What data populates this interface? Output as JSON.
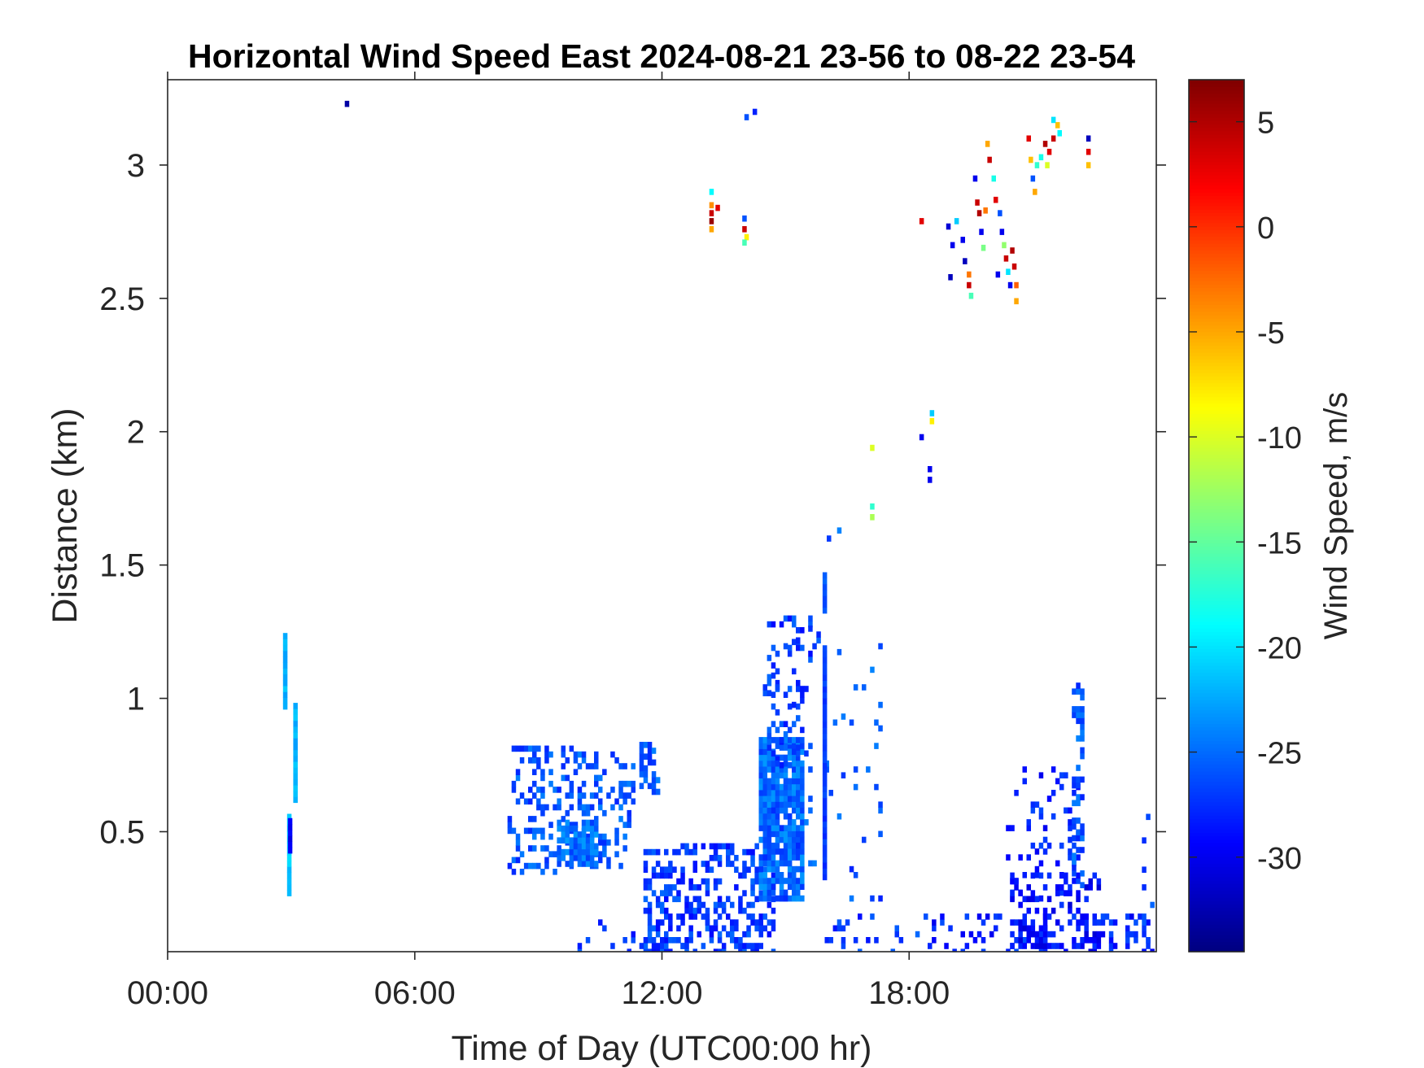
{
  "chart_data": {
    "type": "heatmap",
    "title": "Horizontal Wind Speed East 2024-08-21 23-56 to 08-22 23-54",
    "xlabel": "Time of Day (UTC00:00 hr)",
    "ylabel": "Distance (km)",
    "xlim": [
      0,
      24
    ],
    "ylim": [
      0.05,
      3.32
    ],
    "x_ticks": [
      {
        "value": 0,
        "label": "00:00"
      },
      {
        "value": 6,
        "label": "06:00"
      },
      {
        "value": 12,
        "label": "12:00"
      },
      {
        "value": 18,
        "label": "18:00"
      }
    ],
    "y_ticks": [
      {
        "value": 0.5,
        "label": "0.5"
      },
      {
        "value": 1,
        "label": "1"
      },
      {
        "value": 1.5,
        "label": "1.5"
      },
      {
        "value": 2,
        "label": "2"
      },
      {
        "value": 2.5,
        "label": "2.5"
      },
      {
        "value": 3,
        "label": "3"
      }
    ],
    "grid": false,
    "colorbar": {
      "label": "Wind Speed, m/s",
      "colormap": "jet",
      "range": [
        -34.5,
        7
      ],
      "ticks": [
        {
          "value": 5,
          "label": "5"
        },
        {
          "value": 0,
          "label": "0"
        },
        {
          "value": -5,
          "label": "-5"
        },
        {
          "value": -10,
          "label": "-10"
        },
        {
          "value": -15,
          "label": "-15"
        },
        {
          "value": -20,
          "label": "-20"
        },
        {
          "value": -25,
          "label": "-25"
        },
        {
          "value": -30,
          "label": "-30"
        }
      ]
    },
    "points": [
      [
        4.35,
        3.23,
        -33
      ],
      [
        14.05,
        3.18,
        -26
      ],
      [
        14.25,
        3.2,
        -28
      ],
      [
        13.2,
        2.9,
        -19
      ],
      [
        13.2,
        2.85,
        -4
      ],
      [
        13.2,
        2.82,
        4
      ],
      [
        13.2,
        2.79,
        6
      ],
      [
        13.2,
        2.76,
        -5
      ],
      [
        13.35,
        2.84,
        3
      ],
      [
        14.0,
        2.8,
        -26
      ],
      [
        14.0,
        2.76,
        4
      ],
      [
        14.05,
        2.73,
        -8
      ],
      [
        14.0,
        2.71,
        -16
      ],
      [
        18.3,
        2.79,
        3
      ],
      [
        18.95,
        2.77,
        -31
      ],
      [
        19.05,
        2.7,
        -30
      ],
      [
        19.15,
        2.79,
        -21
      ],
      [
        19.3,
        2.72,
        -30
      ],
      [
        19.35,
        2.64,
        -32
      ],
      [
        19.0,
        2.58,
        -32
      ],
      [
        19.45,
        2.59,
        -3
      ],
      [
        19.45,
        2.55,
        4
      ],
      [
        19.5,
        2.51,
        -16
      ],
      [
        19.6,
        2.95,
        -30
      ],
      [
        19.65,
        2.86,
        4
      ],
      [
        19.7,
        2.82,
        5
      ],
      [
        19.75,
        2.75,
        -30
      ],
      [
        19.8,
        2.69,
        -14
      ],
      [
        19.85,
        2.83,
        -3
      ],
      [
        19.9,
        3.08,
        -5
      ],
      [
        19.95,
        3.02,
        4
      ],
      [
        20.05,
        2.95,
        -18
      ],
      [
        20.1,
        2.87,
        3
      ],
      [
        20.2,
        2.82,
        -26
      ],
      [
        20.25,
        2.75,
        -30
      ],
      [
        20.3,
        2.7,
        -13
      ],
      [
        20.35,
        2.65,
        4
      ],
      [
        20.4,
        2.6,
        -20
      ],
      [
        20.45,
        2.55,
        -30
      ],
      [
        20.5,
        2.68,
        5
      ],
      [
        20.55,
        2.62,
        4
      ],
      [
        20.6,
        2.55,
        -2
      ],
      [
        20.6,
        2.49,
        -5
      ],
      [
        20.15,
        2.59,
        -30
      ],
      [
        20.9,
        3.1,
        3
      ],
      [
        20.95,
        3.02,
        -6
      ],
      [
        21.0,
        2.95,
        -26
      ],
      [
        21.05,
        2.9,
        -5
      ],
      [
        21.1,
        3.0,
        -17
      ],
      [
        21.3,
        3.08,
        5
      ],
      [
        21.4,
        3.05,
        3
      ],
      [
        21.5,
        3.1,
        4
      ],
      [
        21.6,
        3.15,
        -6
      ],
      [
        21.65,
        3.12,
        -19
      ],
      [
        21.5,
        3.17,
        -20
      ],
      [
        21.35,
        3.0,
        -10
      ],
      [
        21.2,
        3.03,
        -18
      ],
      [
        22.35,
        3.1,
        -32
      ],
      [
        22.35,
        3.05,
        3
      ],
      [
        22.35,
        3.0,
        -6
      ],
      [
        17.1,
        1.94,
        -10
      ],
      [
        17.1,
        1.72,
        -17
      ],
      [
        17.1,
        1.68,
        -12
      ],
      [
        18.55,
        2.07,
        -21
      ],
      [
        18.55,
        2.04,
        -8
      ],
      [
        18.3,
        1.98,
        -30
      ],
      [
        18.5,
        1.86,
        -30
      ],
      [
        18.5,
        1.82,
        -30
      ],
      [
        16.3,
        1.63,
        -24
      ],
      [
        16.05,
        1.6,
        -27
      ]
    ],
    "columns": [
      {
        "t": 2.85,
        "y0": 0.97,
        "y1": 1.25,
        "v": -22
      },
      {
        "t": 2.95,
        "y0": 0.27,
        "y1": 0.57,
        "v": -21
      },
      {
        "t": 2.97,
        "y0": 0.43,
        "y1": 0.55,
        "v": -30
      },
      {
        "t": 3.1,
        "y0": 0.62,
        "y1": 0.98,
        "v": -22
      },
      {
        "t": 15.95,
        "y0": 1.33,
        "y1": 1.48,
        "v": -26
      },
      {
        "t": 15.95,
        "y0": 0.33,
        "y1": 1.2,
        "v": -27
      }
    ],
    "regions": [
      {
        "t0": 8.3,
        "t1": 11.3,
        "y0": 0.35,
        "y1": 0.82,
        "v": -26,
        "density": 0.28
      },
      {
        "t0": 9.5,
        "t1": 10.4,
        "y0": 0.38,
        "y1": 0.55,
        "v": -25,
        "density": 0.8
      },
      {
        "t0": 11.5,
        "t1": 11.95,
        "y0": 0.65,
        "y1": 0.84,
        "v": -26,
        "density": 0.6
      },
      {
        "t0": 11.6,
        "t1": 14.7,
        "y0": 0.05,
        "y1": 0.45,
        "v": -27,
        "density": 0.42
      },
      {
        "t0": 10.0,
        "t1": 13.2,
        "y0": 0.05,
        "y1": 0.2,
        "v": -27,
        "density": 0.08
      },
      {
        "t0": 14.4,
        "t1": 15.45,
        "y0": 0.25,
        "y1": 0.85,
        "v": -25,
        "density": 0.85
      },
      {
        "t0": 14.6,
        "t1": 15.65,
        "y0": 0.75,
        "y1": 1.32,
        "v": -27,
        "density": 0.22
      },
      {
        "t0": 14.3,
        "t1": 17.3,
        "y0": 0.25,
        "y1": 1.28,
        "v": -26,
        "density": 0.05
      },
      {
        "t0": 16.0,
        "t1": 18.5,
        "y0": 0.05,
        "y1": 0.2,
        "v": -27,
        "density": 0.15
      },
      {
        "t0": 18.5,
        "t1": 23.9,
        "y0": 0.05,
        "y1": 0.2,
        "v": -28,
        "density": 0.2
      },
      {
        "t0": 20.4,
        "t1": 22.2,
        "y0": 0.25,
        "y1": 0.75,
        "v": -28,
        "density": 0.15
      },
      {
        "t0": 20.5,
        "t1": 22.6,
        "y0": 0.05,
        "y1": 0.35,
        "v": -29,
        "density": 0.3
      },
      {
        "t0": 22.0,
        "t1": 22.2,
        "y0": 0.3,
        "y1": 1.05,
        "v": -26,
        "density": 0.4
      },
      {
        "t0": 23.7,
        "t1": 23.95,
        "y0": 0.05,
        "y1": 0.75,
        "v": -27,
        "density": 0.1
      }
    ]
  }
}
